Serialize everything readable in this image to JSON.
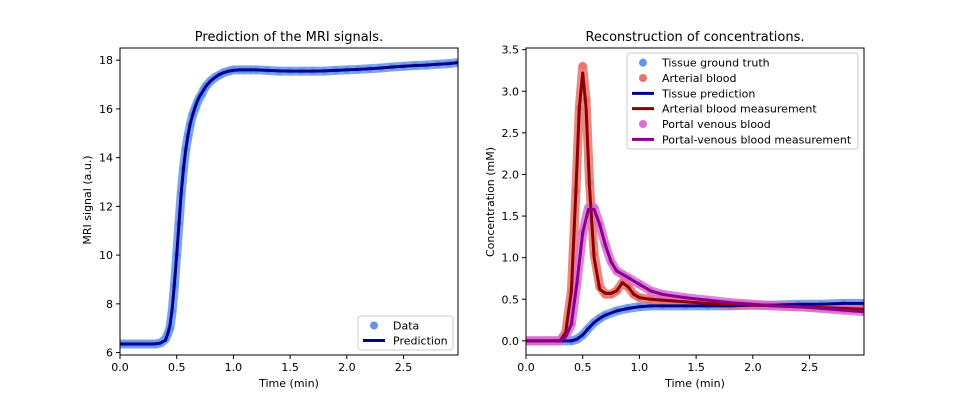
{
  "chart_data": [
    {
      "type": "scatter",
      "title": "Prediction of the MRI signals.",
      "xlabel": "Time (min)",
      "ylabel": "MRI signal (a.u.)",
      "xlim": [
        0,
        2.98
      ],
      "ylim": [
        5.9,
        18.5
      ],
      "xticks": [
        0.0,
        0.5,
        1.0,
        1.5,
        2.0,
        2.5
      ],
      "xtick_labels": [
        "0.0",
        "0.5",
        "1.0",
        "1.5",
        "2.0",
        "2.5"
      ],
      "yticks": [
        6,
        8,
        10,
        12,
        14,
        16,
        18
      ],
      "ytick_labels": [
        "6",
        "8",
        "10",
        "12",
        "14",
        "16",
        "18"
      ],
      "legend_position": "lower right",
      "series": [
        {
          "name": "Data",
          "kind": "points",
          "color": "#6495ed",
          "x": [
            0.0,
            0.04,
            0.08,
            0.12,
            0.16,
            0.2,
            0.24,
            0.28,
            0.32,
            0.36,
            0.4,
            0.42,
            0.44,
            0.46,
            0.48,
            0.5,
            0.52,
            0.54,
            0.56,
            0.58,
            0.6,
            0.62,
            0.64,
            0.66,
            0.68,
            0.7,
            0.72,
            0.74,
            0.76,
            0.8,
            0.84,
            0.88,
            0.92,
            0.96,
            1.0,
            1.05,
            1.1,
            1.15,
            1.2,
            1.3,
            1.4,
            1.5,
            1.6,
            1.7,
            1.8,
            1.9,
            2.0,
            2.1,
            2.2,
            2.3,
            2.4,
            2.5,
            2.6,
            2.7,
            2.8,
            2.9,
            2.98
          ],
          "y": [
            6.35,
            6.35,
            6.35,
            6.35,
            6.35,
            6.35,
            6.35,
            6.35,
            6.35,
            6.4,
            6.55,
            6.75,
            7.0,
            7.7,
            8.75,
            10.0,
            11.3,
            12.55,
            13.55,
            14.35,
            14.9,
            15.35,
            15.75,
            16.0,
            16.25,
            16.45,
            16.6,
            16.8,
            16.95,
            17.15,
            17.3,
            17.4,
            17.5,
            17.55,
            17.6,
            17.6,
            17.6,
            17.6,
            17.6,
            17.58,
            17.55,
            17.55,
            17.55,
            17.55,
            17.55,
            17.58,
            17.6,
            17.62,
            17.65,
            17.68,
            17.72,
            17.75,
            17.78,
            17.8,
            17.83,
            17.86,
            17.9
          ]
        },
        {
          "name": "Prediction",
          "kind": "line",
          "color": "#00008b",
          "x": [
            0.0,
            0.1,
            0.2,
            0.3,
            0.35,
            0.4,
            0.42,
            0.44,
            0.46,
            0.48,
            0.5,
            0.52,
            0.54,
            0.56,
            0.58,
            0.6,
            0.62,
            0.64,
            0.66,
            0.68,
            0.7,
            0.72,
            0.74,
            0.76,
            0.8,
            0.84,
            0.88,
            0.92,
            0.96,
            1.0,
            1.05,
            1.1,
            1.2,
            1.3,
            1.4,
            1.5,
            1.6,
            1.7,
            1.8,
            1.9,
            2.0,
            2.1,
            2.2,
            2.3,
            2.4,
            2.5,
            2.6,
            2.7,
            2.8,
            2.9,
            2.98
          ],
          "y": [
            6.35,
            6.35,
            6.35,
            6.35,
            6.38,
            6.5,
            6.75,
            7.1,
            7.8,
            8.8,
            10.0,
            11.3,
            12.55,
            13.55,
            14.35,
            14.95,
            15.4,
            15.75,
            16.05,
            16.3,
            16.5,
            16.65,
            16.8,
            16.95,
            17.15,
            17.3,
            17.42,
            17.5,
            17.55,
            17.58,
            17.6,
            17.6,
            17.6,
            17.58,
            17.56,
            17.55,
            17.55,
            17.55,
            17.56,
            17.58,
            17.6,
            17.62,
            17.65,
            17.68,
            17.72,
            17.75,
            17.78,
            17.8,
            17.83,
            17.86,
            17.9
          ]
        }
      ]
    },
    {
      "type": "line",
      "title": "Reconstruction of concentrations.",
      "xlabel": "Time (min)",
      "ylabel": "Concentration (mM)",
      "xlim": [
        0,
        2.98
      ],
      "ylim": [
        -0.17,
        3.52
      ],
      "xticks": [
        0.0,
        0.5,
        1.0,
        1.5,
        2.0,
        2.5
      ],
      "xtick_labels": [
        "0.0",
        "0.5",
        "1.0",
        "1.5",
        "2.0",
        "2.5"
      ],
      "yticks": [
        0.0,
        0.5,
        1.0,
        1.5,
        2.0,
        2.5,
        3.0,
        3.5
      ],
      "ytick_labels": [
        "0.0",
        "0.5",
        "1.0",
        "1.5",
        "2.0",
        "2.5",
        "3.0",
        "3.5"
      ],
      "legend_position": "upper right",
      "series": [
        {
          "name": "Tissue ground truth",
          "kind": "points",
          "color": "#6495ed",
          "x": [
            0.0,
            0.1,
            0.2,
            0.3,
            0.4,
            0.45,
            0.5,
            0.55,
            0.6,
            0.65,
            0.7,
            0.8,
            0.9,
            1.0,
            1.1,
            1.2,
            1.4,
            1.6,
            1.8,
            2.0,
            2.2,
            2.4,
            2.6,
            2.8,
            2.98
          ],
          "y": [
            0.0,
            0.0,
            0.0,
            0.0,
            0.0,
            0.02,
            0.07,
            0.15,
            0.22,
            0.27,
            0.31,
            0.36,
            0.39,
            0.41,
            0.42,
            0.42,
            0.42,
            0.42,
            0.42,
            0.43,
            0.43,
            0.44,
            0.44,
            0.45,
            0.45
          ]
        },
        {
          "name": "Arterial blood",
          "kind": "points",
          "color": "#e8736c",
          "x": [
            0.0,
            0.1,
            0.2,
            0.3,
            0.35,
            0.4,
            0.44,
            0.47,
            0.5,
            0.53,
            0.56,
            0.6,
            0.65,
            0.7,
            0.75,
            0.8,
            0.85,
            0.9,
            0.95,
            1.0,
            1.1,
            1.2,
            1.4,
            1.6,
            1.8,
            2.0,
            2.2,
            2.4,
            2.6,
            2.8,
            2.98
          ],
          "y": [
            0.0,
            0.0,
            0.0,
            0.0,
            0.1,
            0.6,
            1.8,
            2.8,
            3.3,
            2.9,
            1.9,
            1.05,
            0.65,
            0.56,
            0.56,
            0.6,
            0.7,
            0.65,
            0.56,
            0.52,
            0.5,
            0.49,
            0.47,
            0.45,
            0.44,
            0.43,
            0.42,
            0.41,
            0.4,
            0.39,
            0.38
          ]
        },
        {
          "name": "Tissue prediction",
          "kind": "line",
          "color": "#00008b",
          "x": [
            0.0,
            0.1,
            0.2,
            0.3,
            0.4,
            0.45,
            0.5,
            0.55,
            0.6,
            0.65,
            0.7,
            0.8,
            0.9,
            1.0,
            1.1,
            1.2,
            1.4,
            1.6,
            1.8,
            2.0,
            2.2,
            2.4,
            2.6,
            2.8,
            2.98
          ],
          "y": [
            0.0,
            0.0,
            0.0,
            0.0,
            0.0,
            0.02,
            0.07,
            0.15,
            0.22,
            0.27,
            0.31,
            0.36,
            0.39,
            0.41,
            0.42,
            0.42,
            0.42,
            0.42,
            0.42,
            0.43,
            0.43,
            0.44,
            0.44,
            0.45,
            0.45
          ]
        },
        {
          "name": "Arterial blood measurement",
          "kind": "line",
          "color": "#8b0000",
          "x": [
            0.0,
            0.1,
            0.2,
            0.3,
            0.35,
            0.4,
            0.44,
            0.47,
            0.5,
            0.53,
            0.56,
            0.6,
            0.65,
            0.7,
            0.75,
            0.8,
            0.85,
            0.9,
            0.95,
            1.0,
            1.1,
            1.2,
            1.4,
            1.6,
            1.8,
            2.0,
            2.2,
            2.4,
            2.6,
            2.8,
            2.98
          ],
          "y": [
            0.0,
            0.0,
            0.0,
            0.0,
            0.1,
            0.6,
            1.8,
            2.8,
            3.22,
            2.8,
            1.85,
            1.0,
            0.62,
            0.57,
            0.57,
            0.6,
            0.7,
            0.65,
            0.56,
            0.52,
            0.5,
            0.49,
            0.47,
            0.45,
            0.44,
            0.43,
            0.42,
            0.41,
            0.4,
            0.39,
            0.38
          ]
        },
        {
          "name": "Portal venous blood",
          "kind": "points",
          "color": "#da70d6",
          "x": [
            0.0,
            0.1,
            0.2,
            0.3,
            0.35,
            0.4,
            0.45,
            0.5,
            0.55,
            0.6,
            0.65,
            0.7,
            0.75,
            0.8,
            0.85,
            0.9,
            1.0,
            1.1,
            1.2,
            1.4,
            1.6,
            1.8,
            2.0,
            2.2,
            2.4,
            2.6,
            2.8,
            2.98
          ],
          "y": [
            0.0,
            0.0,
            0.0,
            0.0,
            0.05,
            0.2,
            0.7,
            1.3,
            1.6,
            1.6,
            1.4,
            1.15,
            0.95,
            0.84,
            0.8,
            0.76,
            0.68,
            0.6,
            0.56,
            0.52,
            0.49,
            0.46,
            0.44,
            0.42,
            0.41,
            0.39,
            0.37,
            0.35
          ]
        },
        {
          "name": "Portal-venous blood measurement",
          "kind": "line",
          "color": "#8b008b",
          "x": [
            0.0,
            0.1,
            0.2,
            0.3,
            0.35,
            0.4,
            0.45,
            0.5,
            0.55,
            0.6,
            0.65,
            0.7,
            0.75,
            0.8,
            0.85,
            0.9,
            1.0,
            1.1,
            1.2,
            1.4,
            1.6,
            1.8,
            2.0,
            2.2,
            2.4,
            2.6,
            2.8,
            2.98
          ],
          "y": [
            0.0,
            0.0,
            0.0,
            0.0,
            0.05,
            0.2,
            0.7,
            1.3,
            1.58,
            1.58,
            1.4,
            1.15,
            0.95,
            0.84,
            0.8,
            0.76,
            0.68,
            0.6,
            0.56,
            0.52,
            0.49,
            0.46,
            0.44,
            0.42,
            0.41,
            0.39,
            0.37,
            0.35
          ]
        }
      ]
    }
  ]
}
